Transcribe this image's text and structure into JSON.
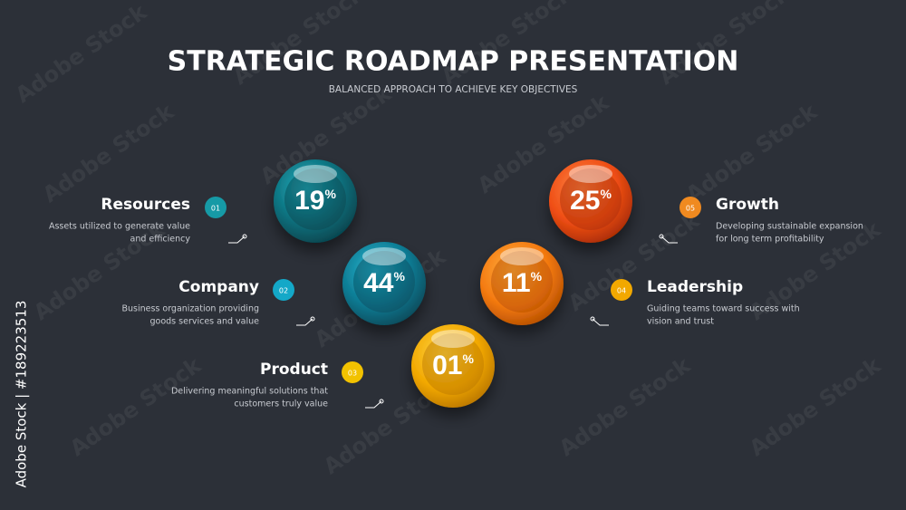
{
  "header": {
    "title": "STRATEGIC ROADMAP PRESENTATION",
    "subtitle": "BALANCED APPROACH TO ACHIEVE KEY OBJECTIVES"
  },
  "items": [
    {
      "number": "01",
      "title": "Resources",
      "description": [
        "Assets utilized to generate value",
        "and efficiency"
      ],
      "value": "19",
      "unit": "%"
    },
    {
      "number": "02",
      "title": "Company",
      "description": [
        "Business organization providing",
        "goods services and value"
      ],
      "value": "44",
      "unit": "%"
    },
    {
      "number": "03",
      "title": "Product",
      "description": [
        "Delivering meaningful solutions that",
        "customers truly value"
      ],
      "value": "01",
      "unit": "%"
    },
    {
      "number": "04",
      "title": "Leadership",
      "description": [
        "Guiding teams toward success with",
        "vision and trust"
      ],
      "value": "11",
      "unit": "%"
    },
    {
      "number": "05",
      "title": "Growth",
      "description": [
        "Developing sustainable expansion",
        "for long term profitability"
      ],
      "value": "25",
      "unit": "%"
    }
  ],
  "watermark": "Adobe Stock",
  "side_label": "Adobe Stock | #189223513"
}
